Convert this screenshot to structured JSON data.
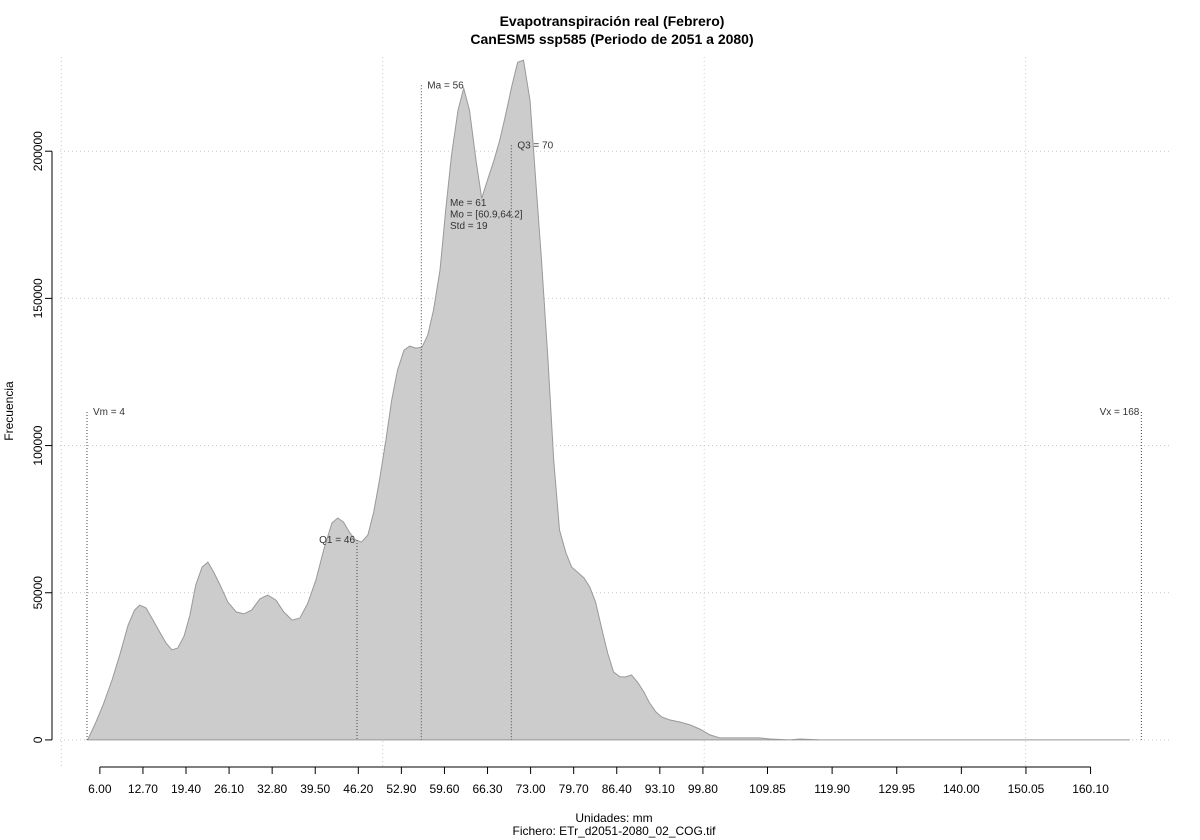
{
  "chart_data": {
    "type": "area",
    "title": "Evapotranspiración real (Febrero)",
    "subtitle": "CanESM5 ssp585 (Periodo de 2051 a 2080)",
    "x_label": "Unidades: mm",
    "caption": "Fichero: ETr_d2051-2080_02_COG.tif",
    "y_label": "Frecuencia",
    "color": "#cccccc",
    "grid": true,
    "xlim": [
      -0.2,
      172.3
    ],
    "ylim": [
      -9200,
      232000
    ],
    "yticks": [
      0,
      50000,
      100000,
      150000,
      200000
    ],
    "xgrid": [
      0,
      50,
      100,
      150
    ],
    "xticks": [
      {
        "value": 6,
        "label": "6.00"
      },
      {
        "value": 12.7,
        "label": "12.70"
      },
      {
        "value": 19.4,
        "label": "19.40"
      },
      {
        "value": 26.1,
        "label": "26.10"
      },
      {
        "value": 32.8,
        "label": "32.80"
      },
      {
        "value": 39.5,
        "label": "39.50"
      },
      {
        "value": 46.2,
        "label": "46.20"
      },
      {
        "value": 52.9,
        "label": "52.90"
      },
      {
        "value": 59.6,
        "label": "59.60"
      },
      {
        "value": 66.3,
        "label": "66.30"
      },
      {
        "value": 73,
        "label": "73.00"
      },
      {
        "value": 79.7,
        "label": "79.70"
      },
      {
        "value": 86.4,
        "label": "86.40"
      },
      {
        "value": 93.1,
        "label": "93.10"
      },
      {
        "value": 99.8,
        "label": "99.80"
      },
      {
        "value": 109.85,
        "label": "109.85"
      },
      {
        "value": 119.9,
        "label": "119.90"
      },
      {
        "value": 129.95,
        "label": "129.95"
      },
      {
        "value": 140,
        "label": "140.00"
      },
      {
        "value": 150.05,
        "label": "150.05"
      },
      {
        "value": 160.1,
        "label": "160.10"
      }
    ],
    "x": [
      4.1,
      5.2,
      6.5,
      7.9,
      9.1,
      10.4,
      11.4,
      12.2,
      13.2,
      14.1,
      15.3,
      16.3,
      17.2,
      18.1,
      19.1,
      20.0,
      20.9,
      21.9,
      22.8,
      23.7,
      24.7,
      25.9,
      27.2,
      28.4,
      29.6,
      30.9,
      32.1,
      33.4,
      34.6,
      35.9,
      37.1,
      38.3,
      39.6,
      40.8,
      42.1,
      43.0,
      43.9,
      44.9,
      45.8,
      46.7,
      47.7,
      48.6,
      49.5,
      50.5,
      51.4,
      52.3,
      53.3,
      54.2,
      55.1,
      56.1,
      57.0,
      57.9,
      58.9,
      59.8,
      60.7,
      61.7,
      62.6,
      63.5,
      64.5,
      65.4,
      66.3,
      67.3,
      68.2,
      69.1,
      70.1,
      71.0,
      71.9,
      72.9,
      73.8,
      74.7,
      75.7,
      76.6,
      77.5,
      78.5,
      79.4,
      80.3,
      81.3,
      82.2,
      83.1,
      84.1,
      85.0,
      85.9,
      86.9,
      87.8,
      88.7,
      89.7,
      90.6,
      91.5,
      92.5,
      93.4,
      94.6,
      96.2,
      97.8,
      99.3,
      100.9,
      102.4,
      105.5,
      108.6,
      110.2,
      113.3,
      114.9,
      118.0,
      166.2
    ],
    "y": [
      0,
      5100,
      11900,
      20400,
      28900,
      39000,
      44100,
      45800,
      44800,
      41400,
      36700,
      32900,
      30600,
      31200,
      35300,
      42400,
      52600,
      58700,
      60400,
      57000,
      52600,
      46900,
      43500,
      42800,
      44100,
      47900,
      49200,
      47500,
      43500,
      40700,
      41400,
      46200,
      54300,
      64500,
      73700,
      75400,
      74000,
      70300,
      67900,
      67200,
      69600,
      77400,
      88300,
      101900,
      115500,
      125600,
      132400,
      133800,
      133100,
      133400,
      137500,
      146000,
      159600,
      180000,
      198600,
      213900,
      221400,
      213900,
      196900,
      184000,
      190200,
      196900,
      203700,
      212200,
      222400,
      230200,
      230900,
      217300,
      190200,
      163000,
      129000,
      95100,
      71300,
      63500,
      58700,
      57000,
      55000,
      52000,
      46900,
      37400,
      29500,
      23100,
      21400,
      21400,
      22100,
      19400,
      16300,
      12600,
      9500,
      7800,
      6800,
      6100,
      5100,
      3700,
      1700,
      700,
      700,
      700,
      300,
      0,
      300,
      0,
      0
    ],
    "annotations": [
      {
        "label": "Vm = 4",
        "x": 4,
        "y": 111400,
        "side": "right"
      },
      {
        "label": "Vx = 168",
        "x": 168,
        "y": 111400,
        "side": "left"
      },
      {
        "label": "Q1 = 46",
        "x": 46,
        "y": 67900,
        "side": "left"
      },
      {
        "label": "Ma = 56",
        "x": 56,
        "y": 222400,
        "side": "right"
      },
      {
        "label": "Q3 = 70",
        "x": 70,
        "y": 202000,
        "side": "right"
      }
    ],
    "stats_text": [
      "Me = 61",
      "Mo = [60.9,64.2]",
      "Std = 19"
    ]
  }
}
